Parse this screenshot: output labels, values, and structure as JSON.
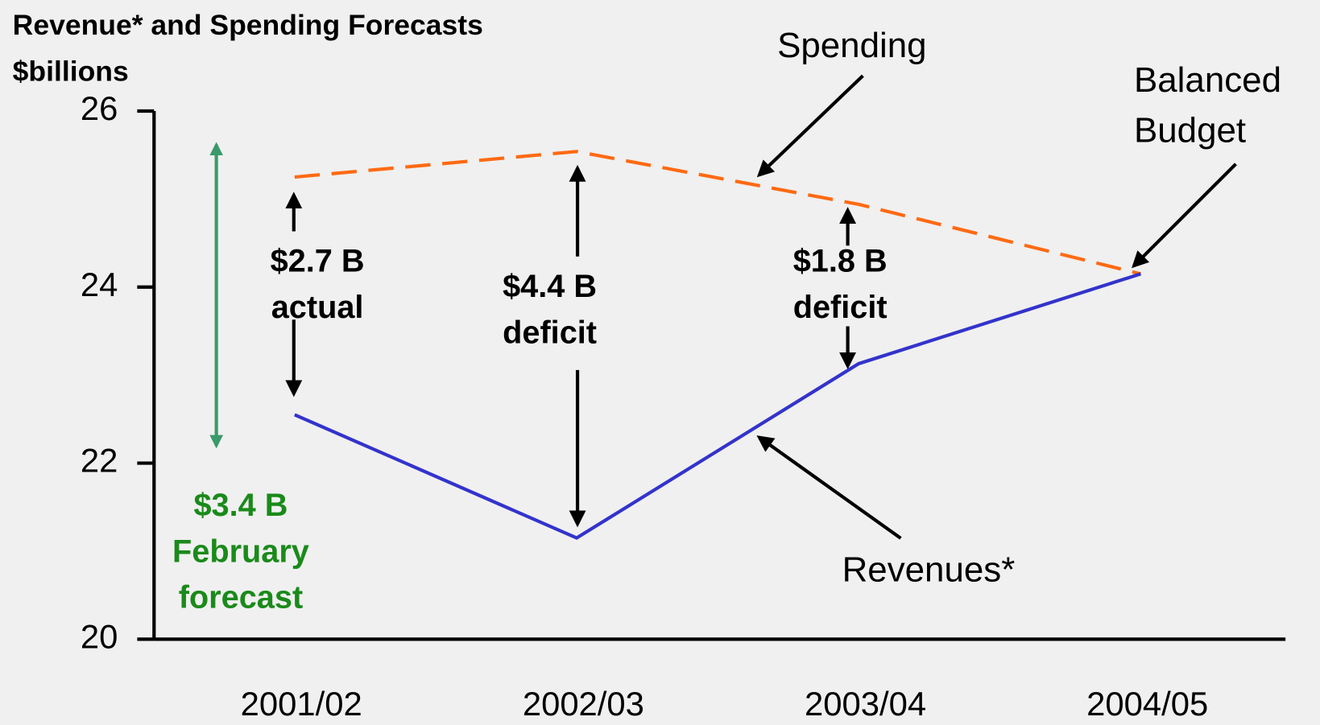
{
  "chart_data": {
    "type": "line",
    "title": "Revenue* and Spending Forecasts",
    "y_label": "$billions",
    "categories": [
      "2001/02",
      "2002/03",
      "2003/04",
      "2004/05"
    ],
    "series": [
      {
        "name": "Spending",
        "color": "#ff6a13",
        "dashed": true,
        "values": [
          25.25,
          25.54,
          24.94,
          24.15
        ]
      },
      {
        "name": "Revenues*",
        "color": "#3333cc",
        "dashed": false,
        "values": [
          22.55,
          21.15,
          23.13,
          24.15
        ]
      }
    ],
    "ylim": [
      20,
      26
    ],
    "yticks": [
      20,
      22,
      24,
      26
    ],
    "annotations": [
      {
        "lines": [
          "$2.7 B",
          "actual"
        ],
        "color": "#000000"
      },
      {
        "lines": [
          "$4.4 B",
          "deficit"
        ],
        "color": "#000000"
      },
      {
        "lines": [
          "$1.8 B",
          "deficit"
        ],
        "color": "#000000"
      },
      {
        "lines": [
          "$3.4 B",
          "February",
          "forecast"
        ],
        "color": "#1a8a1a"
      },
      {
        "lines": [
          "Balanced",
          "Budget"
        ],
        "color": "#000000"
      }
    ]
  }
}
